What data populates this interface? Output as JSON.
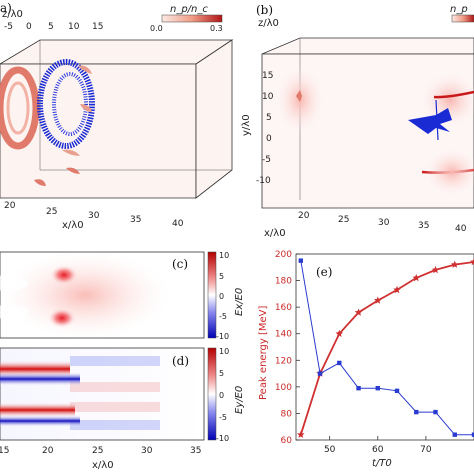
{
  "panel_a": {
    "label": "a)",
    "colorbar_label": "n_p/n_c",
    "colorbar_ticks": [
      "0.0",
      "0.3"
    ],
    "axis_z_label": "z/λ0",
    "axis_x_label": "x/λ0",
    "x_ticks": [
      "20",
      "25",
      "30",
      "35",
      "40"
    ],
    "z_ticks": [
      "-5",
      "0",
      "5",
      "10",
      "15"
    ]
  },
  "panel_b": {
    "label": "(b)",
    "colorbar_label": "n_p",
    "axis_z_label": "z/λ0",
    "axis_y_label": "y/λ0",
    "axis_x_label": "x/λ0",
    "x_ticks": [
      "20",
      "25",
      "30",
      "35",
      "40"
    ],
    "y_ticks": [
      "15",
      "10",
      "5",
      "0",
      "-5",
      "-10"
    ]
  },
  "panel_c": {
    "label": "(c)",
    "colorbar_label": "Ex/E0",
    "colorbar_ticks": [
      "10",
      "5",
      "0",
      "-5",
      "-10"
    ]
  },
  "panel_d": {
    "label": "(d)",
    "colorbar_label": "Ey/E0",
    "colorbar_ticks": [
      "10",
      "5",
      "0",
      "-5",
      "-10"
    ],
    "x_label": "x/λ0",
    "x_ticks": [
      "15",
      "20",
      "25",
      "30",
      "35"
    ]
  },
  "chart_data": {
    "type": "line",
    "label": "(e)",
    "xlabel": "t/T0",
    "ylabel": "Peak energy [MeV]",
    "xlim": [
      43,
      80
    ],
    "ylim": [
      60,
      200
    ],
    "x_ticks": [
      50,
      60,
      70
    ],
    "y_ticks": [
      60,
      80,
      100,
      120,
      140,
      160,
      180,
      200
    ],
    "series": [
      {
        "color": "#d03030",
        "marker": "star",
        "x": [
          44,
          48,
          52,
          56,
          60,
          64,
          68,
          72,
          76,
          80
        ],
        "y": [
          64,
          110,
          140,
          156,
          165,
          173,
          182,
          188,
          192,
          194
        ]
      },
      {
        "color": "#2a3bd0",
        "marker": "square",
        "x": [
          44,
          48,
          52,
          56,
          60,
          64,
          68,
          72,
          76,
          80
        ],
        "y": [
          195,
          110,
          118,
          99,
          99,
          97,
          81,
          81,
          64,
          64
        ]
      }
    ]
  }
}
